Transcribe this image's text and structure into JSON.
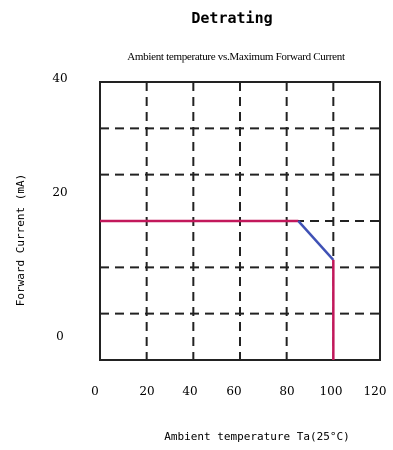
{
  "chart_data": {
    "type": "line",
    "title": "Detrating",
    "subtitle": "Ambient temperature vs.Maximum Forward Current",
    "xlabel": "Ambient temperature Ta(25°C)",
    "ylabel": "Forward Current (mA)",
    "xlim": [
      0,
      120
    ],
    "x_ticks": [
      0,
      20,
      40,
      60,
      80,
      100,
      120
    ],
    "x_tick_labels": [
      "0",
      "20",
      "40",
      "60",
      "80",
      "100",
      "120"
    ],
    "y_tick_labels": [
      {
        "label": "40",
        "value": 40
      },
      {
        "label": "20",
        "value": 20
      },
      {
        "label": "0",
        "value": 0
      }
    ],
    "ylim": [
      -10,
      40
    ],
    "grid": true,
    "colors": {
      "flat": "#c2185b",
      "slope": "#3f51b5",
      "drop": "#c2185b",
      "grid": "#222222"
    },
    "series": [
      {
        "points": [
          {
            "x": 0,
            "y": 15
          },
          {
            "x": 85,
            "y": 15
          },
          {
            "x": 100,
            "y": 8
          },
          {
            "x": 100,
            "y": -10
          }
        ]
      }
    ]
  }
}
